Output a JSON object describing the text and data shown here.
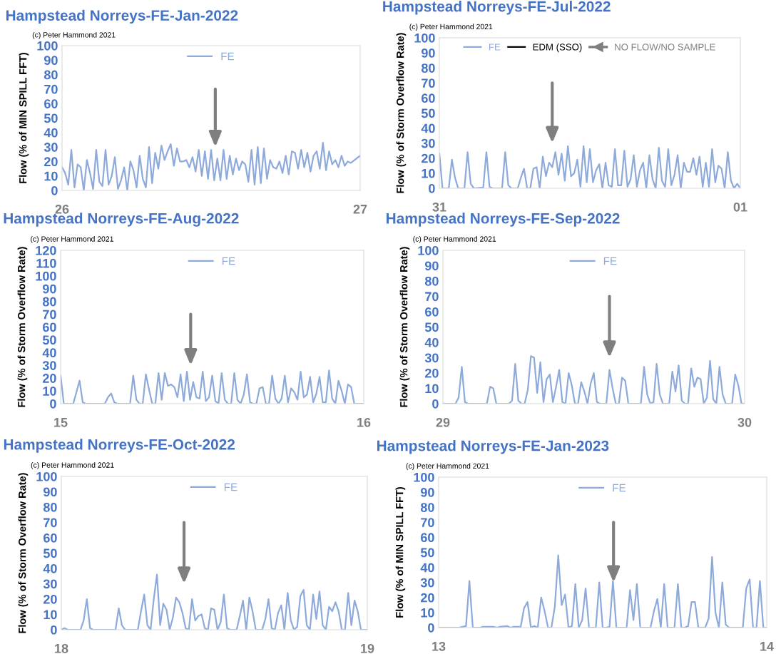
{
  "chart_data": [
    {
      "type": "line",
      "title": "Hampstead Norreys-FE-Jan-2022",
      "ylabel": "Flow (% of MIN SPILL FFT)",
      "legend": "top",
      "xlim": [
        "2022-01-26",
        "2022-01-27"
      ],
      "xticks": [
        {
          "value": "2022-01-26",
          "label": "26"
        },
        {
          "value": "2022-01-27",
          "label": "27"
        }
      ],
      "ylim": [
        0,
        100
      ],
      "yticks": [
        0,
        10,
        20,
        30,
        40,
        50,
        60,
        70,
        80,
        90,
        100
      ],
      "annotations": [
        "(c) Peter Hammond 2021"
      ],
      "series": [
        {
          "name": "FE",
          "color": "#8eaadb",
          "x": [
            "2022-01-26T00:00",
            "2022-01-26T00:15",
            "2022-01-26T00:30",
            "2022-01-26T00:45",
            "2022-01-26T01:00",
            "2022-01-26T01:15",
            "2022-01-26T01:30",
            "2022-01-26T01:45",
            "2022-01-26T02:00",
            "2022-01-26T02:15",
            "2022-01-26T02:30",
            "2022-01-26T02:45",
            "2022-01-26T03:00",
            "2022-01-26T03:15",
            "2022-01-26T03:30",
            "2022-01-26T03:45",
            "2022-01-26T04:00",
            "2022-01-26T04:15",
            "2022-01-26T04:30",
            "2022-01-26T04:45",
            "2022-01-26T05:00",
            "2022-01-26T05:15",
            "2022-01-26T05:30",
            "2022-01-26T05:45",
            "2022-01-26T06:00",
            "2022-01-26T06:15",
            "2022-01-26T06:30",
            "2022-01-26T06:45",
            "2022-01-26T07:00",
            "2022-01-26T07:15",
            "2022-01-26T07:30",
            "2022-01-26T07:45",
            "2022-01-26T08:00",
            "2022-01-26T08:15",
            "2022-01-26T08:30",
            "2022-01-26T08:45",
            "2022-01-26T09:00",
            "2022-01-26T09:15",
            "2022-01-26T09:30",
            "2022-01-26T09:45",
            "2022-01-26T10:00",
            "2022-01-26T10:15",
            "2022-01-26T10:30",
            "2022-01-26T10:45",
            "2022-01-26T11:00",
            "2022-01-26T11:15",
            "2022-01-26T11:30",
            "2022-01-26T11:45",
            "2022-01-26T12:00",
            "2022-01-26T12:15",
            "2022-01-26T12:30",
            "2022-01-26T12:45",
            "2022-01-26T13:00",
            "2022-01-26T13:15",
            "2022-01-26T13:30",
            "2022-01-26T13:45",
            "2022-01-26T14:00",
            "2022-01-26T14:15",
            "2022-01-26T14:30",
            "2022-01-26T14:45",
            "2022-01-26T15:00",
            "2022-01-26T15:15",
            "2022-01-26T15:30",
            "2022-01-26T15:45",
            "2022-01-26T16:00",
            "2022-01-26T16:15",
            "2022-01-26T16:30",
            "2022-01-26T16:45",
            "2022-01-26T17:00",
            "2022-01-26T17:15",
            "2022-01-26T17:30",
            "2022-01-26T17:45",
            "2022-01-26T18:00",
            "2022-01-26T18:15",
            "2022-01-26T18:30",
            "2022-01-26T18:45",
            "2022-01-26T19:00",
            "2022-01-26T19:15",
            "2022-01-26T19:30",
            "2022-01-26T19:45",
            "2022-01-26T20:00",
            "2022-01-26T20:15",
            "2022-01-26T20:30",
            "2022-01-26T20:45",
            "2022-01-26T21:00",
            "2022-01-26T21:15",
            "2022-01-26T21:30",
            "2022-01-26T21:45",
            "2022-01-26T22:00",
            "2022-01-26T22:15",
            "2022-01-26T22:30",
            "2022-01-26T22:45",
            "2022-01-26T23:00",
            "2022-01-26T23:15",
            "2022-01-27T00:00"
          ],
          "values": [
            16,
            12,
            4,
            28,
            2,
            18,
            16,
            0,
            21,
            12,
            1,
            28,
            6,
            3,
            28,
            4,
            10,
            23,
            1,
            7,
            16,
            0,
            20,
            14,
            2,
            24,
            8,
            2,
            30,
            5,
            26,
            15,
            31,
            21,
            27,
            32,
            17,
            29,
            20,
            20,
            21,
            16,
            23,
            13,
            28,
            10,
            27,
            8,
            28,
            7,
            22,
            7,
            28,
            8,
            24,
            11,
            22,
            14,
            20,
            18,
            6,
            28,
            4,
            30,
            5,
            29,
            8,
            21,
            16,
            15,
            20,
            12,
            24,
            11,
            27,
            26,
            15,
            28,
            16,
            26,
            13,
            24,
            27,
            15,
            33,
            14,
            27,
            18,
            21,
            16,
            24,
            17,
            20,
            19,
            24
          ]
        }
      ]
    },
    {
      "type": "line",
      "title": "Hampstead Norreys-FE-Jul-2022",
      "ylabel": "Flow (% of Storm Overflow Rate)",
      "legend": "top",
      "xlim": [
        "2022-07-31",
        "2022-08-01"
      ],
      "xticks": [
        {
          "value": "2022-07-31",
          "label": "31"
        },
        {
          "value": "2022-08-01",
          "label": "01"
        }
      ],
      "ylim": [
        0,
        100
      ],
      "yticks": [
        0,
        10,
        20,
        30,
        40,
        50,
        60,
        70,
        80,
        90,
        100
      ],
      "annotations": [
        "(c) Peter Hammond 2021",
        "NO FLOW/NO SAMPLE"
      ],
      "series": [
        {
          "name": "FE",
          "color": "#8eaadb",
          "x": [
            "2022-07-31T00:00",
            "2022-07-31T00:15",
            "2022-07-31T00:45",
            "2022-07-31T01:00",
            "2022-07-31T01:15",
            "2022-07-31T01:30",
            "2022-07-31T02:00",
            "2022-07-31T02:15",
            "2022-07-31T02:30",
            "2022-07-31T02:45",
            "2022-07-31T03:30",
            "2022-07-31T03:45",
            "2022-07-31T04:00",
            "2022-07-31T04:15",
            "2022-07-31T05:00",
            "2022-07-31T05:15",
            "2022-07-31T05:30",
            "2022-07-31T05:45",
            "2022-07-31T06:15",
            "2022-07-31T06:30",
            "2022-07-31T06:45",
            "2022-07-31T07:00",
            "2022-07-31T07:15",
            "2022-07-31T07:30",
            "2022-07-31T07:45",
            "2022-07-31T08:00",
            "2022-07-31T08:15",
            "2022-07-31T08:30",
            "2022-07-31T08:45",
            "2022-07-31T09:00",
            "2022-07-31T09:15",
            "2022-07-31T09:30",
            "2022-07-31T09:45",
            "2022-07-31T10:00",
            "2022-07-31T10:15",
            "2022-07-31T10:30",
            "2022-07-31T10:45",
            "2022-07-31T11:00",
            "2022-07-31T11:15",
            "2022-07-31T11:30",
            "2022-07-31T11:45",
            "2022-07-31T12:00",
            "2022-07-31T12:15",
            "2022-07-31T12:30",
            "2022-07-31T12:45",
            "2022-07-31T13:00",
            "2022-07-31T13:15",
            "2022-07-31T13:30",
            "2022-07-31T13:45",
            "2022-07-31T14:00",
            "2022-07-31T14:15",
            "2022-07-31T14:30",
            "2022-07-31T14:45",
            "2022-07-31T15:00",
            "2022-07-31T15:15",
            "2022-07-31T15:30",
            "2022-07-31T15:45",
            "2022-07-31T16:00",
            "2022-07-31T16:15",
            "2022-07-31T16:30",
            "2022-07-31T16:45",
            "2022-07-31T17:00",
            "2022-07-31T17:15",
            "2022-07-31T17:30",
            "2022-07-31T17:45",
            "2022-07-31T18:00",
            "2022-07-31T18:15",
            "2022-07-31T18:30",
            "2022-07-31T18:45",
            "2022-07-31T19:00",
            "2022-07-31T19:15",
            "2022-07-31T19:30",
            "2022-07-31T19:45",
            "2022-07-31T20:00",
            "2022-07-31T20:15",
            "2022-07-31T20:30",
            "2022-07-31T20:45",
            "2022-07-31T21:00",
            "2022-07-31T21:15",
            "2022-07-31T21:30",
            "2022-07-31T21:45",
            "2022-07-31T22:00",
            "2022-07-31T22:15",
            "2022-07-31T22:30",
            "2022-07-31T22:45",
            "2022-07-31T23:00",
            "2022-07-31T23:15",
            "2022-07-31T23:30",
            "2022-07-31T23:45",
            "2022-08-01T00:00"
          ],
          "values": [
            23,
            0,
            0,
            19,
            7,
            0,
            0,
            24,
            3,
            0,
            0.5,
            24,
            1,
            0,
            0,
            24,
            2,
            0,
            0,
            7,
            13,
            0,
            0,
            13,
            14,
            0,
            21,
            8,
            17,
            14,
            24,
            9,
            23,
            5,
            28,
            8,
            10,
            19,
            1,
            28,
            4,
            26,
            4,
            12,
            16,
            0,
            17,
            2,
            1,
            26,
            2,
            2,
            25,
            1,
            6,
            22,
            1,
            12,
            17,
            0,
            22,
            6,
            0,
            27,
            5,
            1,
            26,
            2,
            9,
            22,
            0,
            17,
            11,
            11,
            20,
            9,
            21,
            1,
            17,
            1,
            26,
            4,
            15,
            13,
            0,
            24,
            5,
            0,
            3,
            0
          ]
        },
        {
          "name": "EDM (SSO)",
          "color": "#000000"
        }
      ]
    },
    {
      "type": "line",
      "title": "Hampstead Norreys-FE-Aug-2022",
      "ylabel": "Flow (% of Storm Overflow Rate)",
      "legend": "top",
      "xlim": [
        "2022-08-15",
        "2022-08-16"
      ],
      "xticks": [
        {
          "value": "2022-08-15",
          "label": "15"
        },
        {
          "value": "2022-08-16",
          "label": "16"
        }
      ],
      "ylim": [
        0,
        120
      ],
      "yticks": [
        0,
        10,
        20,
        30,
        40,
        50,
        60,
        70,
        80,
        90,
        100,
        110,
        120
      ],
      "annotations": [
        "(c) Peter Hammond 2021"
      ],
      "series": [
        {
          "name": "FE",
          "color": "#8eaadb",
          "x": [
            "2022-08-15T00:00",
            "2022-08-15T00:15",
            "2022-08-15T01:00",
            "2022-08-15T01:30",
            "2022-08-15T01:45",
            "2022-08-15T02:00",
            "2022-08-15T03:30",
            "2022-08-15T03:45",
            "2022-08-15T04:00",
            "2022-08-15T04:15",
            "2022-08-15T04:30",
            "2022-08-15T05:30",
            "2022-08-15T05:45",
            "2022-08-15T06:00",
            "2022-08-15T06:15",
            "2022-08-15T06:30",
            "2022-08-15T06:45",
            "2022-08-15T07:00",
            "2022-08-15T07:15",
            "2022-08-15T07:30",
            "2022-08-15T07:45",
            "2022-08-15T08:00",
            "2022-08-15T08:15",
            "2022-08-15T08:30",
            "2022-08-15T08:45",
            "2022-08-15T09:00",
            "2022-08-15T09:15",
            "2022-08-15T09:30",
            "2022-08-15T09:45",
            "2022-08-15T10:00",
            "2022-08-15T10:15",
            "2022-08-15T10:30",
            "2022-08-15T10:45",
            "2022-08-15T11:00",
            "2022-08-15T11:15",
            "2022-08-15T11:30",
            "2022-08-15T11:45",
            "2022-08-15T12:00",
            "2022-08-15T12:15",
            "2022-08-15T12:30",
            "2022-08-15T12:45",
            "2022-08-15T13:00",
            "2022-08-15T13:15",
            "2022-08-15T13:30",
            "2022-08-15T13:45",
            "2022-08-15T14:00",
            "2022-08-15T14:15",
            "2022-08-15T14:30",
            "2022-08-15T14:45",
            "2022-08-15T15:00",
            "2022-08-15T15:15",
            "2022-08-15T15:30",
            "2022-08-15T15:45",
            "2022-08-15T16:00",
            "2022-08-15T16:15",
            "2022-08-15T16:30",
            "2022-08-15T16:45",
            "2022-08-15T17:00",
            "2022-08-15T17:15",
            "2022-08-15T17:30",
            "2022-08-15T17:45",
            "2022-08-15T18:00",
            "2022-08-15T18:15",
            "2022-08-15T18:30",
            "2022-08-15T18:45",
            "2022-08-15T19:00",
            "2022-08-15T19:15",
            "2022-08-15T19:30",
            "2022-08-15T19:45",
            "2022-08-15T20:00",
            "2022-08-15T20:15",
            "2022-08-15T20:30",
            "2022-08-15T20:45",
            "2022-08-15T21:00",
            "2022-08-15T21:15",
            "2022-08-15T21:30",
            "2022-08-15T21:45",
            "2022-08-15T22:00",
            "2022-08-15T22:15",
            "2022-08-15T22:30",
            "2022-08-15T22:45",
            "2022-08-15T23:00",
            "2022-08-15T23:15",
            "2022-08-16T00:00"
          ],
          "values": [
            22,
            0,
            0,
            18,
            1,
            0,
            0,
            5,
            8,
            1,
            0,
            0,
            22,
            3,
            0,
            0,
            23,
            11,
            0,
            0,
            24,
            3,
            24,
            14,
            15,
            13,
            5,
            23,
            2,
            25,
            3,
            17,
            5,
            4,
            25,
            2,
            5,
            22,
            2,
            0,
            24,
            3,
            0,
            0,
            24,
            3,
            0,
            7,
            23,
            1,
            0,
            0,
            12,
            13,
            0,
            0,
            22,
            4,
            0,
            4,
            22,
            1,
            12,
            9,
            3,
            25,
            5,
            7,
            21,
            1,
            8,
            21,
            1,
            1,
            26,
            4,
            0,
            18,
            10,
            0,
            15,
            13,
            0,
            0
          ]
        }
      ]
    },
    {
      "type": "line",
      "title": "Hampstead Norreys-FE-Sep-2022",
      "ylabel": "Flow (% of Storm Overflow Rate)",
      "legend": "top",
      "xlim": [
        "2022-09-29",
        "2022-09-30"
      ],
      "xticks": [
        {
          "value": "2022-09-29",
          "label": "29"
        },
        {
          "value": "2022-09-30",
          "label": "30"
        }
      ],
      "ylim": [
        0,
        100
      ],
      "yticks": [
        0,
        10,
        20,
        30,
        40,
        50,
        60,
        70,
        80,
        90,
        100
      ],
      "annotations": [
        "(c) Peter Hammond 2021"
      ],
      "series": [
        {
          "name": "FE",
          "color": "#8eaadb",
          "x": [
            "2022-09-29T00:00",
            "2022-09-29T01:00",
            "2022-09-29T01:15",
            "2022-09-29T01:30",
            "2022-09-29T01:45",
            "2022-09-29T02:00",
            "2022-09-29T03:30",
            "2022-09-29T03:45",
            "2022-09-29T04:00",
            "2022-09-29T04:15",
            "2022-09-29T04:30",
            "2022-09-29T05:15",
            "2022-09-29T05:30",
            "2022-09-29T05:45",
            "2022-09-29T06:00",
            "2022-09-29T06:15",
            "2022-09-29T06:30",
            "2022-09-29T06:45",
            "2022-09-29T07:00",
            "2022-09-29T07:15",
            "2022-09-29T07:30",
            "2022-09-29T07:45",
            "2022-09-29T08:00",
            "2022-09-29T08:15",
            "2022-09-29T08:30",
            "2022-09-29T08:45",
            "2022-09-29T09:00",
            "2022-09-29T09:15",
            "2022-09-29T09:30",
            "2022-09-29T09:45",
            "2022-09-29T10:00",
            "2022-09-29T10:15",
            "2022-09-29T10:30",
            "2022-09-29T10:45",
            "2022-09-29T11:00",
            "2022-09-29T11:15",
            "2022-09-29T11:30",
            "2022-09-29T11:45",
            "2022-09-29T12:00",
            "2022-09-29T12:15",
            "2022-09-29T12:30",
            "2022-09-29T13:00",
            "2022-09-29T13:15",
            "2022-09-29T13:30",
            "2022-09-29T13:45",
            "2022-09-29T14:00",
            "2022-09-29T14:15",
            "2022-09-29T14:30",
            "2022-09-29T14:45",
            "2022-09-29T15:00",
            "2022-09-29T15:45",
            "2022-09-29T16:00",
            "2022-09-29T16:15",
            "2022-09-29T16:30",
            "2022-09-29T16:45",
            "2022-09-29T17:00",
            "2022-09-29T17:15",
            "2022-09-29T17:30",
            "2022-09-29T18:00",
            "2022-09-29T18:15",
            "2022-09-29T18:30",
            "2022-09-29T18:45",
            "2022-09-29T19:00",
            "2022-09-29T19:15",
            "2022-09-29T19:30",
            "2022-09-29T19:45",
            "2022-09-29T20:00",
            "2022-09-29T20:15",
            "2022-09-29T20:30",
            "2022-09-29T20:45",
            "2022-09-29T21:00",
            "2022-09-29T21:15",
            "2022-09-29T21:30",
            "2022-09-29T21:45",
            "2022-09-29T22:00",
            "2022-09-29T22:15",
            "2022-09-29T22:30",
            "2022-09-29T23:00",
            "2022-09-29T23:15",
            "2022-09-29T23:30",
            "2022-09-29T23:45",
            "2022-09-30T00:00"
          ],
          "values": [
            0,
            0,
            4,
            24,
            1,
            0,
            0,
            11,
            10,
            0,
            0,
            0,
            2,
            26,
            2,
            0,
            0,
            9,
            31,
            30,
            7,
            27,
            1,
            16,
            19,
            1,
            11,
            22,
            1,
            0,
            20,
            12,
            0,
            0,
            14,
            8,
            0,
            13,
            20,
            1,
            0,
            0,
            22,
            10,
            0,
            0,
            17,
            15,
            0,
            0,
            0,
            24,
            6,
            0,
            1,
            26,
            6,
            0,
            0,
            21,
            8,
            25,
            2,
            0,
            0,
            23,
            11,
            17,
            16,
            0,
            4,
            28,
            3,
            0,
            24,
            6,
            0,
            0,
            19,
            12,
            0,
            0
          ]
        }
      ]
    },
    {
      "type": "line",
      "title": "Hampstead Norreys-FE-Oct-2022",
      "ylabel": "Flow (% of Storm Overflow Rate)",
      "legend": "top",
      "xlim": [
        "2022-10-18",
        "2022-10-19"
      ],
      "xticks": [
        {
          "value": "2022-10-18",
          "label": "18"
        },
        {
          "value": "2022-10-19",
          "label": "19"
        }
      ],
      "ylim": [
        0,
        100
      ],
      "yticks": [
        0,
        10,
        20,
        30,
        40,
        50,
        60,
        70,
        80,
        90,
        100
      ],
      "annotations": [
        "(c) Peter Hammond 2021"
      ],
      "series": [
        {
          "name": "FE",
          "color": "#8eaadb",
          "x": [
            "2022-10-18T00:00",
            "2022-10-18T00:15",
            "2022-10-18T00:30",
            "2022-10-18T01:30",
            "2022-10-18T01:45",
            "2022-10-18T02:00",
            "2022-10-18T02:15",
            "2022-10-18T02:30",
            "2022-10-18T04:15",
            "2022-10-18T04:30",
            "2022-10-18T04:45",
            "2022-10-18T05:00",
            "2022-10-18T06:00",
            "2022-10-18T06:15",
            "2022-10-18T06:30",
            "2022-10-18T06:45",
            "2022-10-18T07:00",
            "2022-10-18T07:15",
            "2022-10-18T07:30",
            "2022-10-18T07:45",
            "2022-10-18T08:00",
            "2022-10-18T08:15",
            "2022-10-18T08:30",
            "2022-10-18T08:45",
            "2022-10-18T09:00",
            "2022-10-18T09:15",
            "2022-10-18T09:30",
            "2022-10-18T09:45",
            "2022-10-18T10:00",
            "2022-10-18T10:15",
            "2022-10-18T10:30",
            "2022-10-18T10:45",
            "2022-10-18T11:00",
            "2022-10-18T11:15",
            "2022-10-18T11:30",
            "2022-10-18T11:45",
            "2022-10-18T12:00",
            "2022-10-18T12:15",
            "2022-10-18T12:30",
            "2022-10-18T12:45",
            "2022-10-18T13:00",
            "2022-10-18T13:15",
            "2022-10-18T13:45",
            "2022-10-18T14:00",
            "2022-10-18T14:15",
            "2022-10-18T14:30",
            "2022-10-18T14:45",
            "2022-10-18T15:00",
            "2022-10-18T15:15",
            "2022-10-18T15:45",
            "2022-10-18T16:00",
            "2022-10-18T16:15",
            "2022-10-18T16:30",
            "2022-10-18T16:45",
            "2022-10-18T17:00",
            "2022-10-18T17:15",
            "2022-10-18T17:30",
            "2022-10-18T17:45",
            "2022-10-18T18:00",
            "2022-10-18T18:15",
            "2022-10-18T18:30",
            "2022-10-18T18:45",
            "2022-10-18T19:00",
            "2022-10-18T19:15",
            "2022-10-18T19:30",
            "2022-10-18T19:45",
            "2022-10-18T20:00",
            "2022-10-18T20:15",
            "2022-10-18T20:30",
            "2022-10-18T20:45",
            "2022-10-18T21:00",
            "2022-10-18T21:15",
            "2022-10-18T21:30",
            "2022-10-18T21:45",
            "2022-10-18T22:00",
            "2022-10-18T22:15",
            "2022-10-18T22:30",
            "2022-10-18T22:45",
            "2022-10-18T23:00",
            "2022-10-18T23:15",
            "2022-10-18T23:30",
            "2022-10-19T00:00"
          ],
          "values": [
            0,
            1,
            0,
            0,
            6,
            20,
            1,
            0,
            0,
            14,
            3,
            0,
            0,
            12,
            23,
            3,
            0,
            20,
            36,
            3,
            17,
            13,
            0,
            8,
            21,
            18,
            11,
            1,
            0,
            20,
            6,
            9,
            10,
            1,
            0,
            14,
            13,
            0,
            5,
            23,
            1,
            0,
            0,
            9,
            19,
            0,
            21,
            12,
            0,
            0,
            7,
            20,
            1,
            0,
            11,
            16,
            0,
            24,
            6,
            0,
            2,
            22,
            26,
            3,
            0,
            23,
            7,
            25,
            3,
            0,
            15,
            12,
            18,
            12,
            0,
            0,
            24,
            3,
            19,
            12,
            0,
            0
          ]
        }
      ]
    },
    {
      "type": "line",
      "title": "Hampstead Norreys-FE-Jan-2023",
      "ylabel": "Flow (% of MIN SPILL FFT)",
      "legend": "top",
      "xlim": [
        "2023-01-13",
        "2023-01-14"
      ],
      "xticks": [
        {
          "value": "2023-01-13",
          "label": "13"
        },
        {
          "value": "2023-01-14",
          "label": "14"
        }
      ],
      "ylim": [
        0,
        100
      ],
      "yticks": [
        0,
        10,
        20,
        30,
        40,
        50,
        60,
        70,
        80,
        90,
        100
      ],
      "annotations": [
        "(c) Peter Hammond 2021"
      ],
      "series": [
        {
          "name": "FE",
          "color": "#8eaadb",
          "x": [
            "2023-01-13T00:00",
            "2023-01-13T01:30",
            "2023-01-13T01:45",
            "2023-01-13T02:00",
            "2023-01-13T02:15",
            "2023-01-13T02:30",
            "2023-01-13T03:00",
            "2023-01-13T03:15",
            "2023-01-13T04:00",
            "2023-01-13T04:15",
            "2023-01-13T04:30",
            "2023-01-13T05:00",
            "2023-01-13T05:15",
            "2023-01-13T05:30",
            "2023-01-13T06:00",
            "2023-01-13T06:15",
            "2023-01-13T06:30",
            "2023-01-13T06:45",
            "2023-01-13T07:00",
            "2023-01-13T07:15",
            "2023-01-13T07:30",
            "2023-01-13T07:45",
            "2023-01-13T08:00",
            "2023-01-13T08:15",
            "2023-01-13T08:30",
            "2023-01-13T08:45",
            "2023-01-13T09:00",
            "2023-01-13T09:15",
            "2023-01-13T09:30",
            "2023-01-13T09:45",
            "2023-01-13T10:00",
            "2023-01-13T10:15",
            "2023-01-13T10:30",
            "2023-01-13T10:45",
            "2023-01-13T11:00",
            "2023-01-13T11:30",
            "2023-01-13T11:45",
            "2023-01-13T12:00",
            "2023-01-13T12:15",
            "2023-01-13T12:30",
            "2023-01-13T12:45",
            "2023-01-13T13:00",
            "2023-01-13T13:45",
            "2023-01-13T14:00",
            "2023-01-13T14:15",
            "2023-01-13T14:30",
            "2023-01-13T14:45",
            "2023-01-13T15:30",
            "2023-01-13T15:45",
            "2023-01-13T16:00",
            "2023-01-13T16:15",
            "2023-01-13T16:30",
            "2023-01-13T16:45",
            "2023-01-13T17:15",
            "2023-01-13T17:30",
            "2023-01-13T17:45",
            "2023-01-13T18:00",
            "2023-01-13T18:15",
            "2023-01-13T18:30",
            "2023-01-13T18:45",
            "2023-01-13T19:00",
            "2023-01-13T19:30",
            "2023-01-13T19:45",
            "2023-01-13T20:00",
            "2023-01-13T20:15",
            "2023-01-13T20:30",
            "2023-01-13T20:45",
            "2023-01-13T21:00",
            "2023-01-13T21:15",
            "2023-01-13T22:15",
            "2023-01-13T22:30",
            "2023-01-13T22:45",
            "2023-01-13T23:00",
            "2023-01-13T23:15",
            "2023-01-13T23:30",
            "2023-01-13T23:45",
            "2023-01-14T00:00"
          ],
          "values": [
            0,
            0,
            0.5,
            1,
            31,
            0,
            0,
            0.5,
            0.5,
            0,
            0.5,
            1,
            0,
            0.5,
            0.5,
            13,
            17,
            0,
            1,
            0,
            20,
            11,
            0,
            0,
            14,
            48,
            15,
            22,
            0,
            1,
            29,
            0,
            5,
            26,
            0,
            0,
            30,
            0,
            0,
            0.5,
            31,
            0,
            0,
            25,
            5,
            29,
            0,
            0,
            11,
            19,
            0,
            29,
            0,
            0,
            29,
            0,
            0,
            1,
            17,
            17,
            0,
            0,
            6,
            47,
            10,
            0,
            30,
            2,
            0,
            0,
            26,
            32,
            0,
            0,
            31,
            0,
            0
          ]
        }
      ]
    }
  ]
}
